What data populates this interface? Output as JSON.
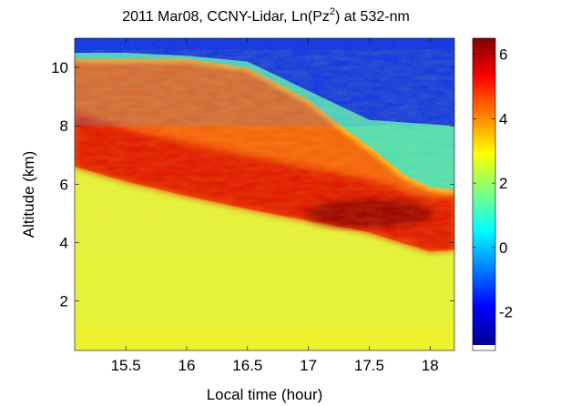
{
  "chart_data": {
    "type": "heatmap",
    "title_main": "2011 Mar08, CCNY-Lidar, Ln(Pz",
    "title_sup": "2",
    "title_tail": ") at 532-nm",
    "xlabel": "Local time (hour)",
    "ylabel": "Altitude (km)",
    "xlim": [
      15.08,
      18.2
    ],
    "ylim": [
      0.3,
      11.0
    ],
    "x_ticks": [
      15.5,
      16,
      16.5,
      17,
      17.5,
      18
    ],
    "x_tick_labels": [
      "15.5",
      "16",
      "16.5",
      "17",
      "17.5",
      "18"
    ],
    "y_ticks": [
      2,
      4,
      6,
      8,
      10
    ],
    "y_tick_labels": [
      "2",
      "4",
      "6",
      "8",
      "10"
    ],
    "colorbar": {
      "colormap": "jet",
      "clim": [
        -3.2,
        6.5
      ],
      "ticks": [
        -2,
        0,
        2,
        4,
        6
      ],
      "tick_labels": [
        "-2",
        "0",
        "2",
        "4",
        "6"
      ]
    },
    "layers": {
      "free_troposphere_value": -2.8,
      "boundary_layer_value": 2.6,
      "near_surface_value": 2.9,
      "aerosol_layer_value": 4.6,
      "aerosol_layer_peak_value": 5.8,
      "aerosol_layer_peak_time": 17.5,
      "aerosol_layer_peak_altitude": 5.0,
      "boundary_layer_top": {
        "time": [
          15.08,
          15.5,
          16.0,
          16.5,
          17.0,
          17.5,
          17.8,
          18.0,
          18.2
        ],
        "altitude": [
          6.6,
          6.1,
          5.6,
          5.15,
          4.75,
          4.35,
          3.95,
          3.7,
          3.75
        ]
      },
      "aerosol_layer_top": {
        "time": [
          15.08,
          15.5,
          16.0,
          16.5,
          17.0,
          17.3,
          17.5,
          17.8,
          18.0,
          18.2
        ],
        "altitude": [
          10.3,
          10.3,
          10.3,
          10.0,
          8.9,
          7.9,
          7.3,
          6.3,
          5.9,
          5.8
        ]
      },
      "signal_noise_top": {
        "time": [
          15.08,
          15.5,
          16.0,
          16.5,
          16.8,
          17.0,
          17.3,
          17.5,
          18.2
        ],
        "altitude": [
          10.5,
          10.5,
          10.4,
          10.2,
          9.6,
          9.2,
          8.6,
          8.2,
          8.0
        ]
      }
    }
  }
}
